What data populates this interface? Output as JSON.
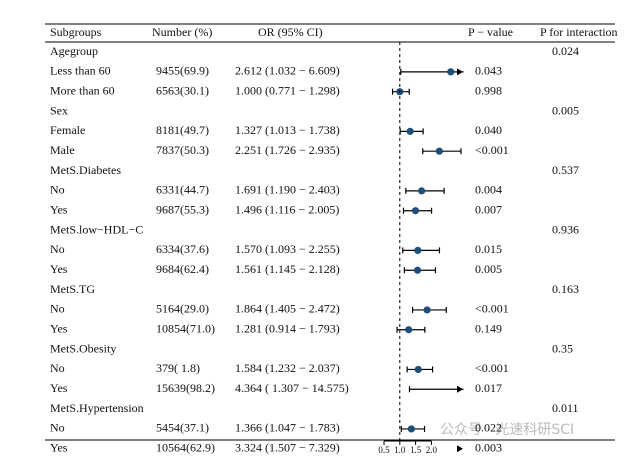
{
  "chart_data": {
    "type": "forest",
    "columns": [
      "Subgroups",
      "Number (%)",
      "OR (95% CI)",
      "P − value",
      "P for interaction"
    ],
    "xlim": [
      0.5,
      3.0
    ],
    "xticks": [
      0.5,
      {
        "value": 1,
        "label": "1.0"
      },
      1.5,
      {
        "value": 2,
        "label": "2.0"
      }
    ],
    "reference": 1,
    "color": "#1f4e79",
    "groups": [
      {
        "name": "Agegroup",
        "p_interaction": "0.024",
        "items": [
          {
            "name": "Less than 60",
            "n": "9455(69.9)",
            "ci_text": "2.612 (1.032 − 6.609)",
            "or": 2.612,
            "lower": 1.032,
            "upper": 6.609,
            "p": "0.043"
          },
          {
            "name": "More than 60",
            "n": "6563(30.1)",
            "ci_text": "1.000 (0.771 − 1.298)",
            "or": 1.0,
            "lower": 0.771,
            "upper": 1.298,
            "p": "0.998"
          }
        ]
      },
      {
        "name": "Sex",
        "p_interaction": "0.005",
        "items": [
          {
            "name": "Female",
            "n": "8181(49.7)",
            "ci_text": "1.327 (1.013 − 1.738)",
            "or": 1.327,
            "lower": 1.013,
            "upper": 1.738,
            "p": "0.040"
          },
          {
            "name": "Male",
            "n": "7837(50.3)",
            "ci_text": "2.251 (1.726 − 2.935)",
            "or": 2.251,
            "lower": 1.726,
            "upper": 2.935,
            "p": "<0.001"
          }
        ]
      },
      {
        "name": "MetS.Diabetes",
        "p_interaction": "0.537",
        "items": [
          {
            "name": "No",
            "n": "6331(44.7)",
            "ci_text": "1.691 (1.190 − 2.403)",
            "or": 1.691,
            "lower": 1.19,
            "upper": 2.403,
            "p": "0.004"
          },
          {
            "name": "Yes",
            "n": "9687(55.3)",
            "ci_text": "1.496 (1.116 − 2.005)",
            "or": 1.496,
            "lower": 1.116,
            "upper": 2.005,
            "p": "0.007"
          }
        ]
      },
      {
        "name": "MetS.low−HDL−C",
        "p_interaction": "0.936",
        "items": [
          {
            "name": "No",
            "n": "6334(37.6)",
            "ci_text": "1.570 (1.093 − 2.255)",
            "or": 1.57,
            "lower": 1.093,
            "upper": 2.255,
            "p": "0.015"
          },
          {
            "name": "Yes",
            "n": "9684(62.4)",
            "ci_text": "1.561 (1.145 − 2.128)",
            "or": 1.561,
            "lower": 1.145,
            "upper": 2.128,
            "p": "0.005"
          }
        ]
      },
      {
        "name": "MetS.TG",
        "p_interaction": "0.163",
        "items": [
          {
            "name": "No",
            "n": "5164(29.0)",
            "ci_text": "1.864 (1.405 − 2.472)",
            "or": 1.864,
            "lower": 1.405,
            "upper": 2.472,
            "p": "<0.001"
          },
          {
            "name": "Yes",
            "n": "10854(71.0)",
            "ci_text": "1.281 (0.914 − 1.793)",
            "or": 1.281,
            "lower": 0.914,
            "upper": 1.793,
            "p": "0.149"
          }
        ]
      },
      {
        "name": "MetS.Obesity",
        "p_interaction": "0.35",
        "items": [
          {
            "name": "No",
            "n": "379( 1.8)",
            "ci_text": "1.584 (1.232 − 2.037)",
            "or": 1.584,
            "lower": 1.232,
            "upper": 2.037,
            "p": "<0.001"
          },
          {
            "name": "Yes",
            "n": "15639(98.2)",
            "ci_text": "4.364 ( 1.307 − 14.575)",
            "or": 4.364,
            "lower": 1.307,
            "upper": 14.575,
            "p": "0.017"
          }
        ]
      },
      {
        "name": "MetS.Hypertension",
        "p_interaction": "0.011",
        "items": [
          {
            "name": "No",
            "n": "5454(37.1)",
            "ci_text": "1.366 (1.047 − 1.783)",
            "or": 1.366,
            "lower": 1.047,
            "upper": 1.783,
            "p": "0.022"
          },
          {
            "name": "Yes",
            "n": "10564(62.9)",
            "ci_text": "3.324 (1.507 − 7.329)",
            "or": 3.324,
            "lower": 1.507,
            "upper": 7.329,
            "p": "0.003"
          }
        ]
      }
    ],
    "watermark": "公众号 · 光速科研SCI"
  }
}
